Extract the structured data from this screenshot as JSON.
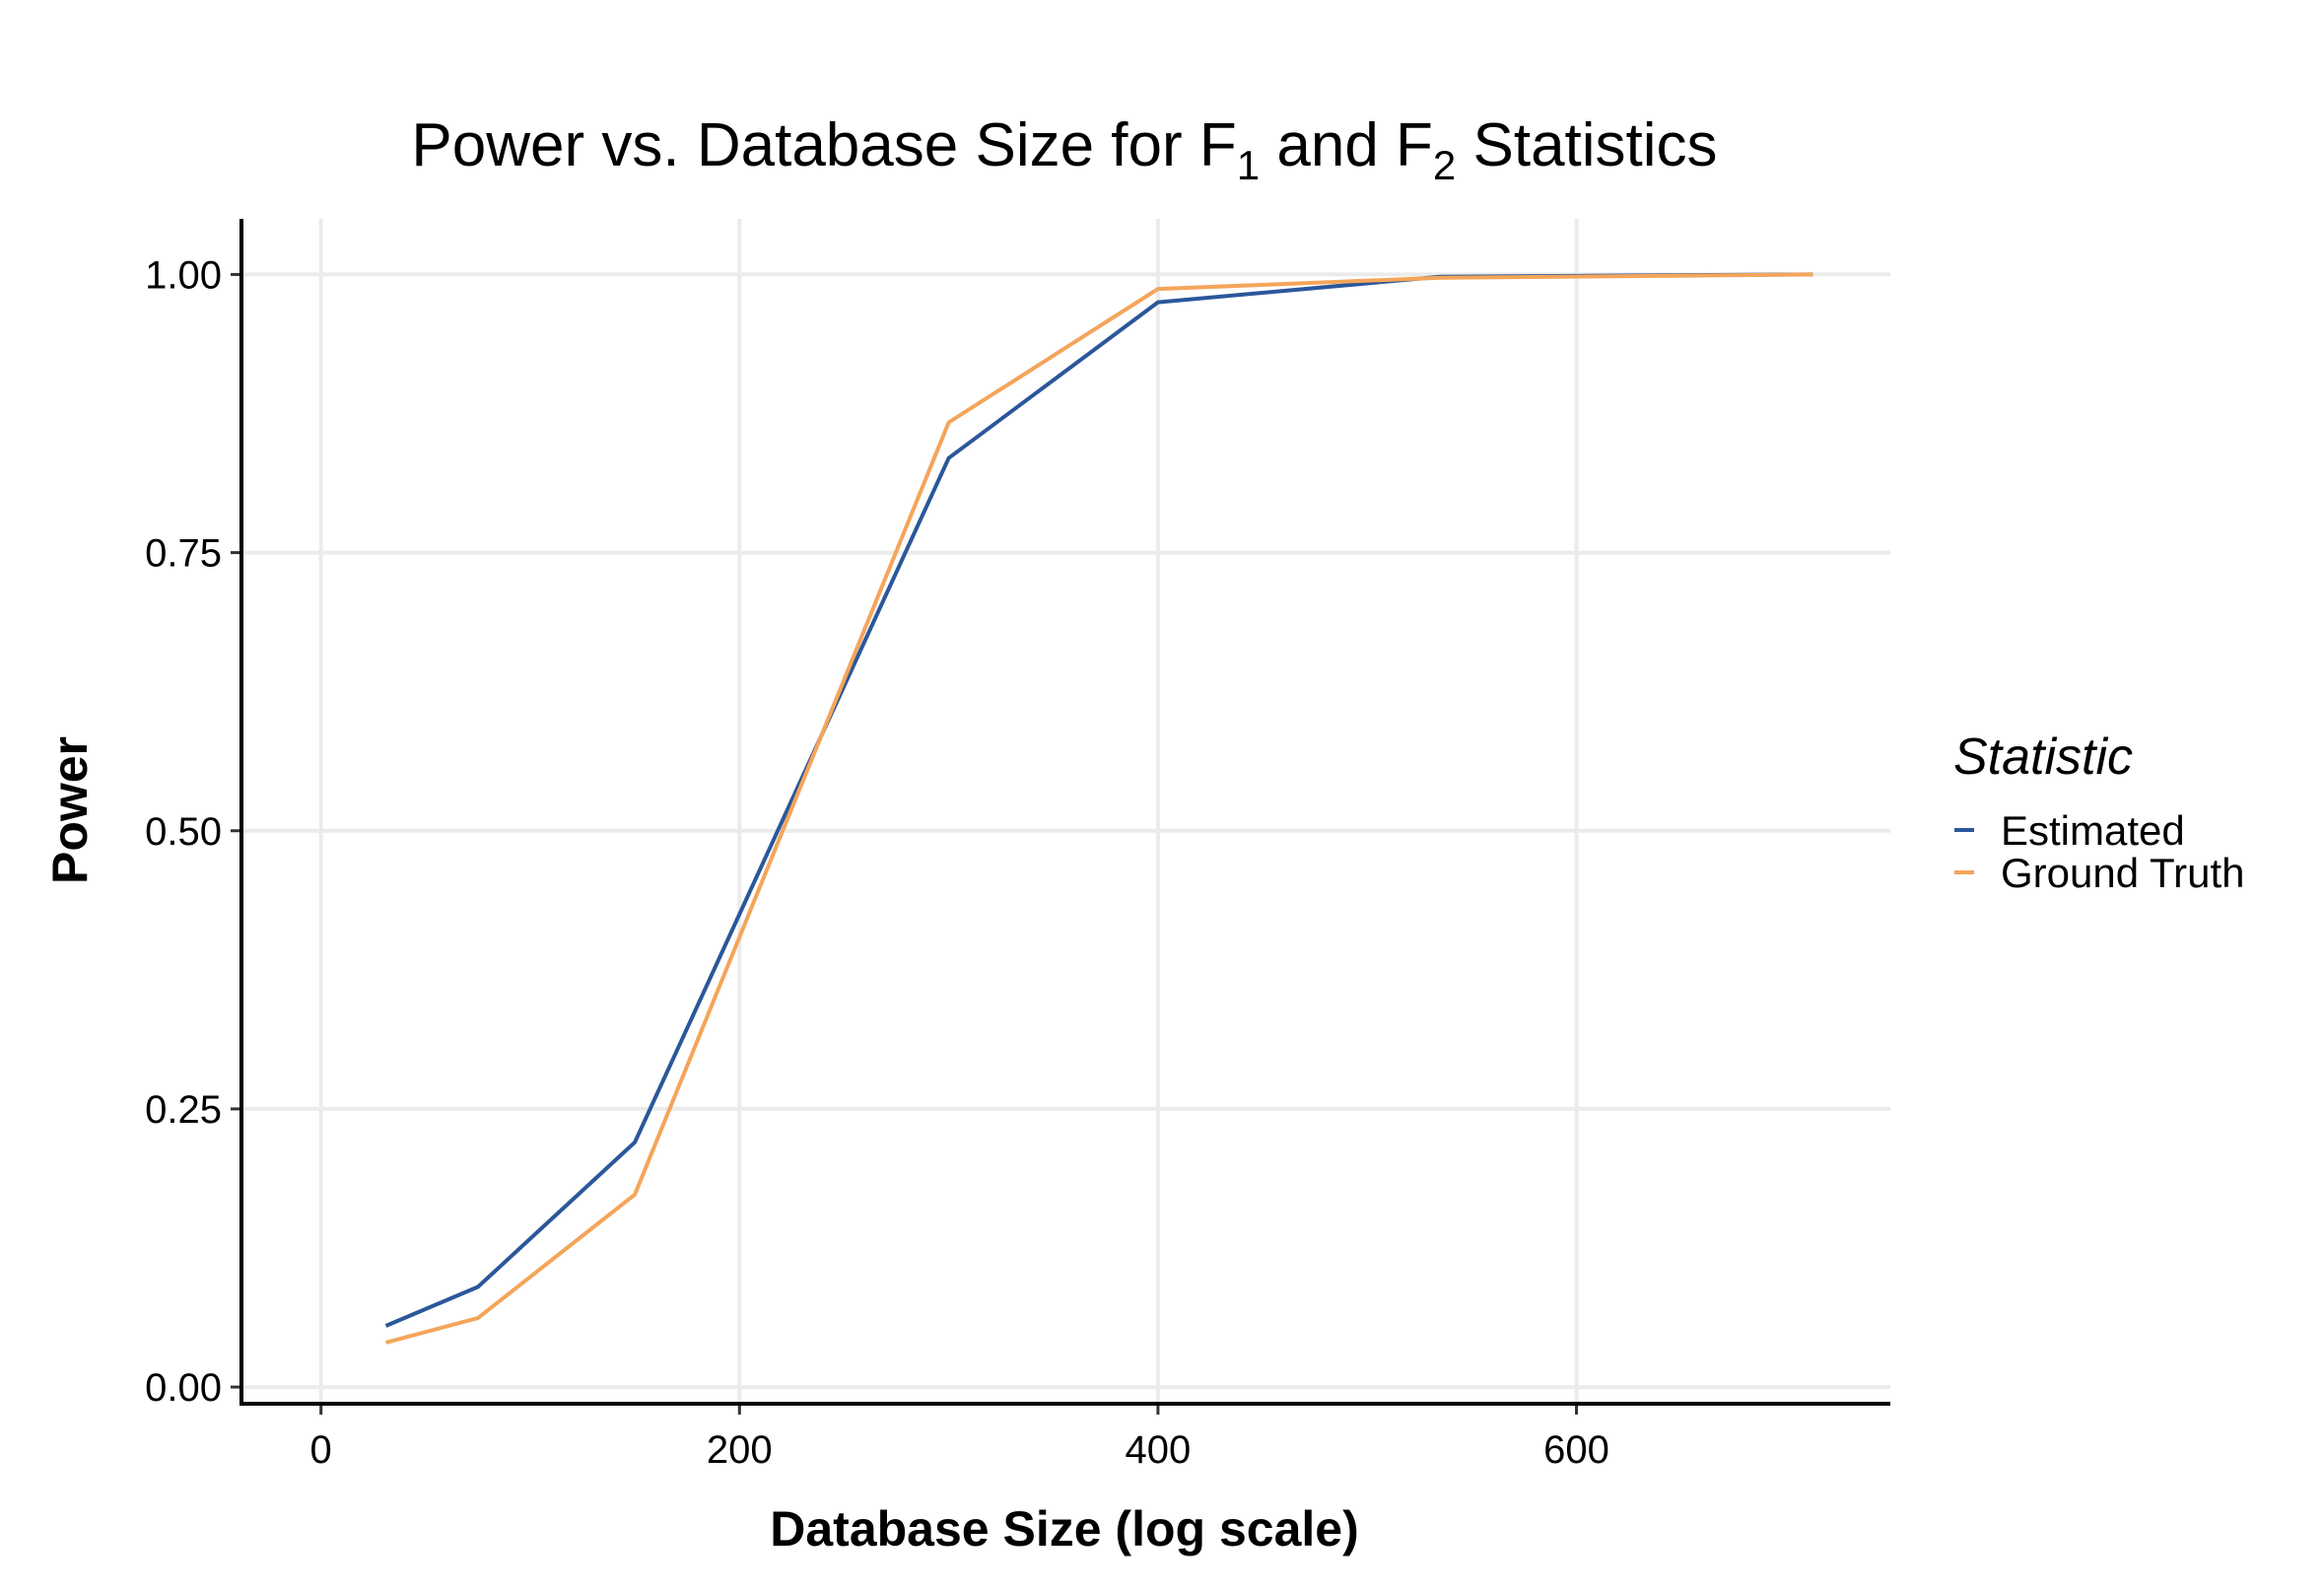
{
  "chart_data": {
    "type": "line",
    "title": {
      "prefix": "Power vs. Database Size for F",
      "sub1": "1",
      "middle": " and F",
      "sub2": "2",
      "suffix": " Statistics"
    },
    "xlabel": "Database Size (log scale)",
    "ylabel": "Power",
    "xlim": [
      -38,
      750
    ],
    "ylim": [
      -0.015,
      1.05
    ],
    "x_ticks": [
      0,
      200,
      400,
      600
    ],
    "x_tick_labels": [
      "0",
      "200",
      "400",
      "600"
    ],
    "y_ticks": [
      0,
      0.25,
      0.5,
      0.75,
      1.0
    ],
    "y_tick_labels": [
      "0.00",
      "0.25",
      "0.50",
      "0.75",
      "1.00"
    ],
    "grid": true,
    "legend": {
      "title": "Statistic",
      "position": "right"
    },
    "series": [
      {
        "name": "Estimated",
        "color": "#2b579a",
        "x": [
          31,
          75,
          150,
          300,
          400,
          535,
          713
        ],
        "y": [
          0.055,
          0.09,
          0.22,
          0.835,
          0.975,
          0.998,
          1.0
        ]
      },
      {
        "name": "Ground Truth",
        "color": "#f4a55a",
        "x": [
          31,
          75,
          150,
          300,
          400,
          535,
          713
        ],
        "y": [
          0.04,
          0.062,
          0.173,
          0.867,
          0.987,
          0.997,
          1.0
        ]
      }
    ]
  }
}
